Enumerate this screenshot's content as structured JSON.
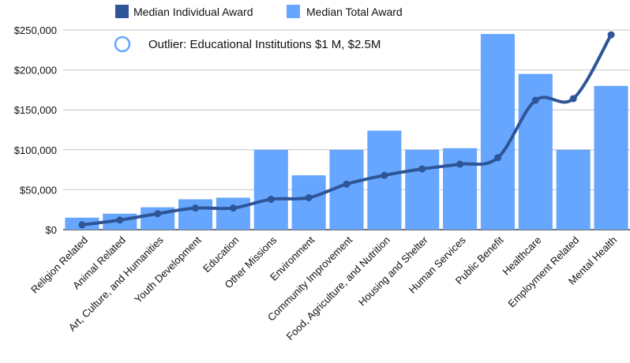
{
  "chart_data": {
    "type": "bar",
    "title": "",
    "xlabel": "",
    "ylabel": "",
    "ylim": [
      0,
      250000
    ],
    "yticks": [
      0,
      50000,
      100000,
      150000,
      200000,
      250000
    ],
    "ytick_labels": [
      "$0",
      "$50,000",
      "$100,000",
      "$150,000",
      "$200,000",
      "$250,000"
    ],
    "grid": true,
    "legend_position": "top",
    "categories": [
      "Religion Related",
      "Animal Related",
      "Art, Culture, and Humanities",
      "Youth Development",
      "Education",
      "Other Missions",
      "Environment",
      "Community Improvement",
      "Food, Agriculture, and Nutrition",
      "Housing and Shelter",
      "Human Services",
      "Public Benefit",
      "Healthcare",
      "Employment Related",
      "Mental Health"
    ],
    "series": [
      {
        "name": "Median Total Award",
        "type": "bar",
        "color": "#66a6ff",
        "values": [
          15000,
          20000,
          28000,
          38000,
          40000,
          100000,
          68000,
          100000,
          124000,
          100000,
          102000,
          245000,
          195000,
          100000,
          180000
        ]
      },
      {
        "name": "Median Individual Award",
        "type": "line",
        "color": "#2f5597",
        "values": [
          6000,
          12000,
          20000,
          27000,
          27000,
          38000,
          40000,
          57000,
          68000,
          76000,
          82000,
          90000,
          162000,
          164000,
          244000
        ]
      }
    ],
    "annotation": {
      "text": "Outlier: Educational Institutions $1 M, $2.5M",
      "marker": "hollow-circle"
    }
  }
}
